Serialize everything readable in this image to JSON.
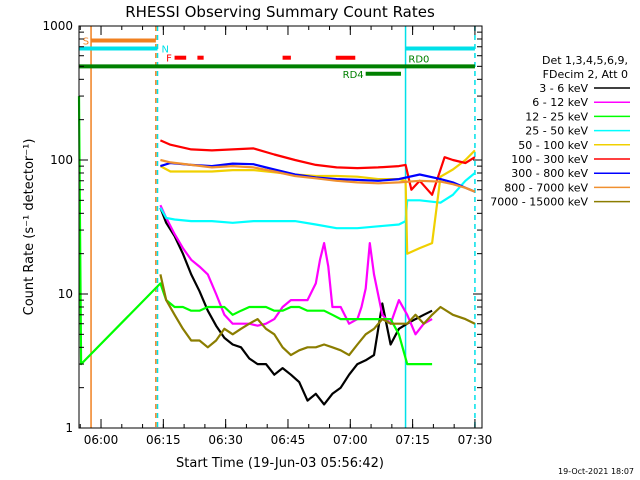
{
  "chart_data": {
    "type": "line",
    "title": "RHESSI Observing Summary Count Rates",
    "xlabel": "Start Time (19-Jun-03 05:56:42)",
    "ylabel": "Count Rate (s⁻¹ detector⁻¹)",
    "x_unit": "minutes after 05:56:42",
    "xlim": [
      -2,
      95
    ],
    "ylim": [
      1,
      1000
    ],
    "yscale": "log",
    "x_ticks": [
      {
        "at": 3.3,
        "label": "06:00"
      },
      {
        "at": 18.3,
        "label": "06:15"
      },
      {
        "at": 33.3,
        "label": "06:30"
      },
      {
        "at": 48.3,
        "label": "06:45"
      },
      {
        "at": 63.3,
        "label": "07:00"
      },
      {
        "at": 78.3,
        "label": "07:15"
      },
      {
        "at": 93.3,
        "label": "07:30"
      }
    ],
    "y_ticks": [
      {
        "at": 1,
        "label": "1"
      },
      {
        "at": 10,
        "label": "10"
      },
      {
        "at": 100,
        "label": "100"
      },
      {
        "at": 1000,
        "label": "1000"
      }
    ],
    "legend_header": [
      "Det 1,3,4,5,6,9,",
      "FDecim 2, Att 0"
    ],
    "legend_position": "right",
    "timestamp": "19-Oct-2021 18:07",
    "vlines": [
      {
        "x": 0.9,
        "color": "#f08020",
        "style": "solid"
      },
      {
        "x": 16.5,
        "color": "#f08020",
        "style": "dashed"
      },
      {
        "x": 16.9,
        "color": "#00e0e8",
        "style": "dashed"
      },
      {
        "x": 76.6,
        "color": "#00e0e8",
        "style": "solid"
      },
      {
        "x": 93.3,
        "color": "#00e0e8",
        "style": "dashed"
      }
    ],
    "flags": [
      {
        "label": "S",
        "color": "#f08020",
        "y": 780,
        "segments": [
          [
            0.9,
            16.5
          ]
        ]
      },
      {
        "label": "N",
        "color": "#00e0e8",
        "y": 680,
        "segments": [
          [
            -2,
            16.9
          ],
          [
            76.6,
            93.3
          ]
        ]
      },
      {
        "label": "F",
        "color": "#ff0000",
        "y": 580,
        "segments": [
          [
            21,
            23.8
          ],
          [
            26.5,
            28
          ],
          [
            47,
            49
          ],
          [
            59.8,
            64.5
          ]
        ]
      },
      {
        "label": "RD0",
        "color": "#008000",
        "y": 500,
        "segments": [
          [
            -2,
            93.3
          ]
        ]
      },
      {
        "label": "RD4",
        "color": "#008000",
        "y": 440,
        "segments": [
          [
            67,
            75.5
          ]
        ]
      }
    ],
    "series": [
      {
        "name": "3 - 6 keV",
        "color": "#000000",
        "x": [
          17.6,
          19,
          21,
          23,
          25,
          27,
          29,
          31,
          33,
          35,
          37,
          39,
          41,
          43,
          45,
          47,
          49,
          51,
          53,
          55,
          57,
          59,
          61,
          63,
          65,
          67,
          69,
          71,
          73,
          75,
          77,
          79,
          81,
          83
        ],
        "y": [
          44,
          34,
          27,
          20,
          14,
          10.5,
          7.5,
          5.8,
          4.7,
          4.2,
          4,
          3.3,
          3,
          3,
          2.5,
          2.8,
          2.5,
          2.2,
          1.6,
          1.8,
          1.5,
          1.8,
          2,
          2.5,
          3,
          3.2,
          3.5,
          8.5,
          4.2,
          5.5,
          6,
          6.5,
          7,
          7.5
        ]
      },
      {
        "name": "6 - 12 keV",
        "color": "#ff00ff",
        "x": [
          17.6,
          19,
          21,
          23,
          25,
          27,
          29,
          31,
          33,
          35,
          37,
          39,
          41,
          43,
          45,
          47,
          49,
          51,
          53,
          55,
          56,
          57,
          58,
          59,
          61,
          63,
          65,
          66,
          67,
          68,
          69,
          71,
          73,
          75,
          77,
          79,
          81,
          83
        ],
        "y": [
          46,
          37,
          28,
          22,
          18,
          16,
          14,
          10,
          7,
          6,
          6,
          6,
          5.8,
          6,
          6.5,
          8,
          9,
          9,
          9,
          12,
          18,
          24,
          16,
          8,
          8,
          6,
          6.5,
          8,
          11,
          24,
          14,
          7,
          6,
          9,
          7,
          5,
          6,
          6.5
        ]
      },
      {
        "name": "12 - 25 keV",
        "color": "#00ff00",
        "x": [
          -2,
          -1.5,
          17.6,
          19,
          21,
          23,
          25,
          27,
          29,
          31,
          33,
          35,
          37,
          39,
          41,
          43,
          45,
          47,
          49,
          51,
          53,
          55,
          57,
          59,
          61,
          63,
          65,
          67,
          69,
          71,
          73,
          75,
          77,
          79,
          81,
          83
        ],
        "y": [
          300,
          3,
          12,
          9,
          8,
          8,
          7.5,
          7.5,
          8,
          8,
          8,
          7,
          7.5,
          8,
          8,
          8,
          7.5,
          7.5,
          8,
          8,
          7.5,
          7.5,
          7.5,
          7,
          6.5,
          6.5,
          6.5,
          6.5,
          6.5,
          6.5,
          6.5,
          5,
          3,
          3,
          3,
          3
        ]
      },
      {
        "name": "25 - 50 keV",
        "color": "#00ffff",
        "x": [
          17.6,
          19,
          21,
          25,
          30,
          35,
          40,
          45,
          50,
          55,
          60,
          65,
          70,
          75,
          76.6,
          77,
          80,
          85,
          88,
          91,
          93.3
        ],
        "y": [
          44,
          37,
          36,
          35,
          35,
          34,
          35,
          35,
          35,
          33,
          31,
          31,
          32,
          33,
          35,
          50,
          50,
          48,
          55,
          70,
          80
        ]
      },
      {
        "name": "50 - 100 keV",
        "color": "#f0d000",
        "x": [
          17.6,
          20,
          25,
          30,
          35,
          40,
          45,
          50,
          55,
          60,
          65,
          70,
          75,
          76.6,
          77,
          80,
          83,
          85,
          88,
          91,
          93.3
        ],
        "y": [
          90,
          82,
          82,
          82,
          84,
          84,
          81,
          78,
          76,
          76,
          75,
          72,
          72,
          70,
          20,
          22,
          24,
          75,
          85,
          100,
          118
        ]
      },
      {
        "name": "100 - 300 keV",
        "color": "#ff0000",
        "x": [
          17.6,
          20,
          25,
          30,
          35,
          40,
          45,
          50,
          55,
          60,
          65,
          70,
          75,
          76.6,
          78,
          80,
          83,
          86,
          88,
          91,
          93.3
        ],
        "y": [
          140,
          130,
          120,
          118,
          120,
          122,
          110,
          100,
          92,
          88,
          87,
          88,
          90,
          92,
          60,
          70,
          55,
          105,
          100,
          95,
          105
        ]
      },
      {
        "name": "300 - 800 keV",
        "color": "#0000ff",
        "x": [
          17.6,
          20,
          25,
          30,
          35,
          40,
          45,
          50,
          55,
          60,
          65,
          70,
          75,
          80,
          85,
          88,
          91,
          93.3
        ],
        "y": [
          90,
          95,
          92,
          90,
          94,
          93,
          85,
          78,
          74,
          72,
          71,
          70,
          72,
          78,
          72,
          68,
          62,
          58
        ]
      },
      {
        "name": "800 - 7000 keV",
        "color": "#f09030",
        "x": [
          17.6,
          20,
          25,
          30,
          35,
          40,
          45,
          50,
          55,
          60,
          65,
          70,
          75,
          80,
          85,
          88,
          91,
          93.3
        ],
        "y": [
          100,
          96,
          92,
          88,
          90,
          88,
          82,
          76,
          73,
          70,
          68,
          67,
          68,
          70,
          69,
          66,
          62,
          58
        ]
      },
      {
        "name": "7000 - 15000 keV",
        "color": "#8b7d00",
        "x": [
          17.6,
          19,
          21,
          23,
          25,
          27,
          29,
          31,
          33,
          35,
          37,
          39,
          41,
          43,
          45,
          47,
          49,
          51,
          53,
          55,
          57,
          59,
          61,
          63,
          65,
          67,
          69,
          71,
          73,
          75,
          77,
          79,
          81,
          83,
          85,
          88,
          91,
          93.3
        ],
        "y": [
          14,
          9,
          7,
          5.5,
          4.5,
          4.5,
          4,
          4.5,
          5.5,
          5,
          5.5,
          6,
          6.5,
          5.5,
          5,
          4,
          3.5,
          3.8,
          4,
          4,
          4.2,
          4,
          3.8,
          3.5,
          4.2,
          5,
          5.5,
          6.5,
          6,
          6,
          6,
          7,
          6,
          7,
          8,
          7,
          6.5,
          6
        ]
      }
    ]
  }
}
